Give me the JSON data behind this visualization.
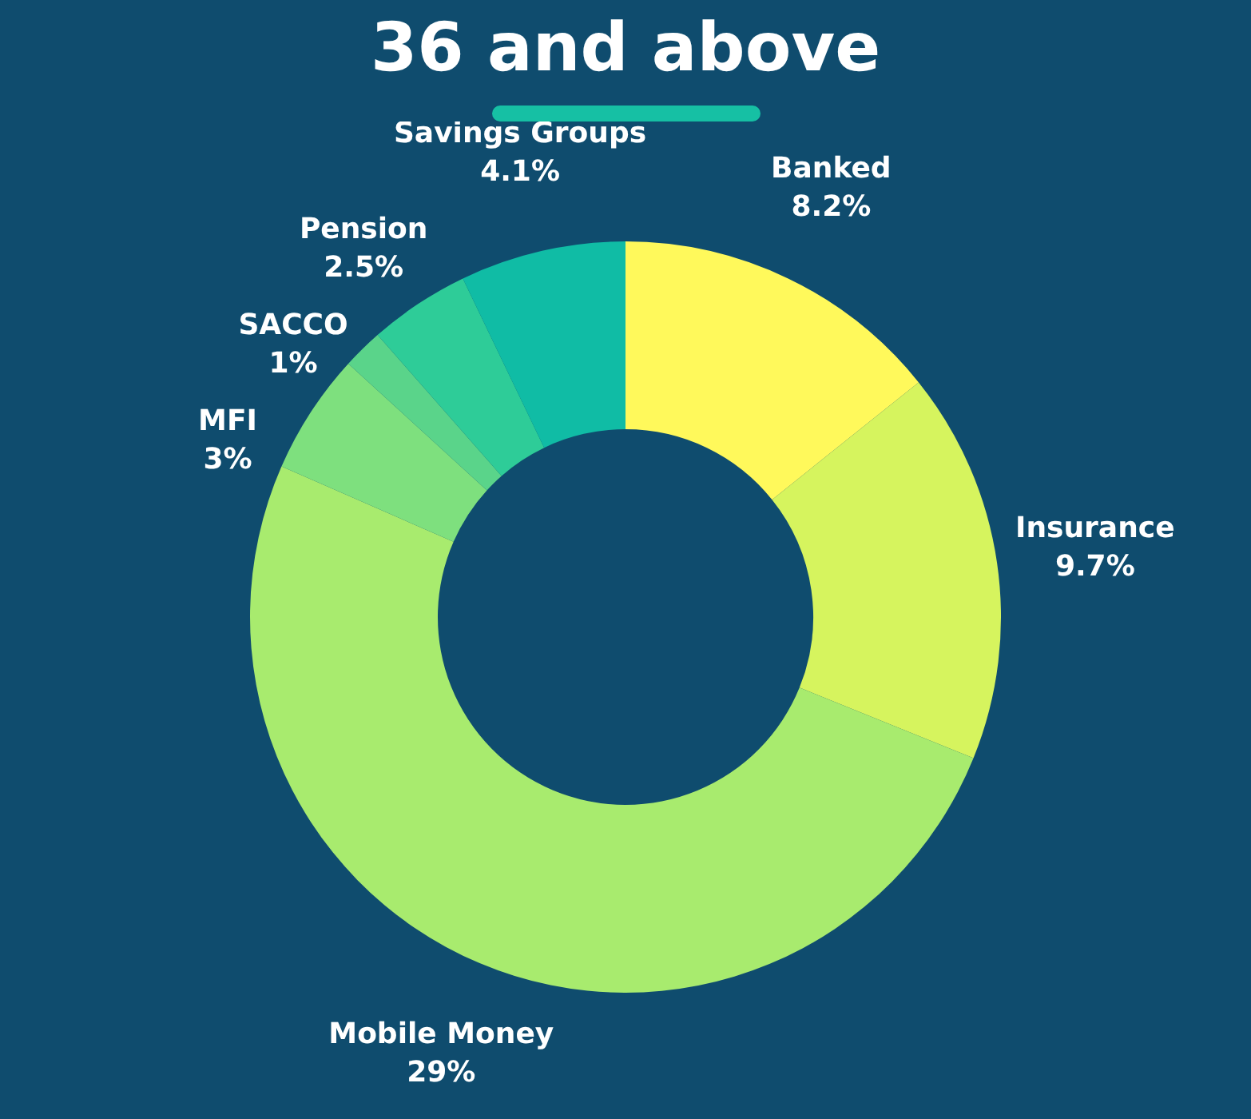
{
  "chart_data": {
    "type": "donut",
    "title": "36 and above",
    "categories": [
      "Banked",
      "Insurance",
      "Mobile Money",
      "MFI",
      "SACCO",
      "Pension",
      "Savings Groups"
    ],
    "values": [
      8.2,
      9.7,
      29,
      3,
      1,
      2.5,
      4.1
    ],
    "value_labels": [
      "8.2%",
      "9.7%",
      "29%",
      "3%",
      "1%",
      "2.5%",
      "4.1%"
    ],
    "colors": [
      "#fff95b",
      "#d6f45e",
      "#a8eb6e",
      "#7ee07e",
      "#5ad48a",
      "#2ecc98",
      "#10bca5"
    ],
    "legend": false
  }
}
